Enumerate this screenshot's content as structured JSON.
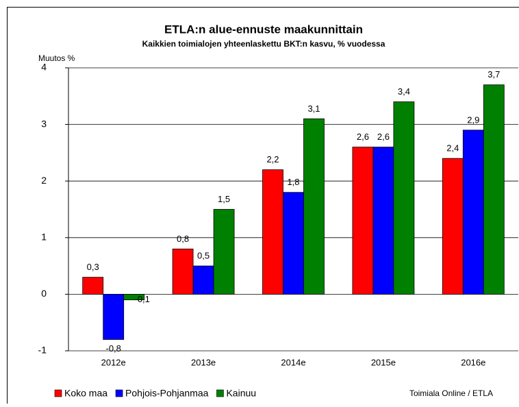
{
  "chart_data": {
    "type": "bar",
    "title": "ETLA:n alue-ennuste maakunnittain",
    "subtitle": "Kaikkien toimialojen yhteenlaskettu BKT:n kasvu, % vuodessa",
    "y_label": "Muutos %",
    "source": "Toimiala Online / ETLA",
    "categories": [
      "2012e",
      "2013e",
      "2014e",
      "2015e",
      "2016e"
    ],
    "series": [
      {
        "name": "Koko maa",
        "color": "#ff0000",
        "values": [
          0.3,
          0.8,
          2.2,
          2.6,
          2.4
        ],
        "value_labels": [
          "0,3",
          "0,8",
          "2,2",
          "2,6",
          "2,4"
        ]
      },
      {
        "name": "Pohjois-Pohjanmaa",
        "color": "#0000ff",
        "values": [
          -0.8,
          0.5,
          1.8,
          2.6,
          2.9
        ],
        "value_labels": [
          "-0,8",
          "0,5",
          "1,8",
          "2,6",
          "2,9"
        ]
      },
      {
        "name": "Kainuu",
        "color": "#008000",
        "values": [
          -0.1,
          1.5,
          3.1,
          3.4,
          3.7
        ],
        "value_labels": [
          "-0,1",
          "1,5",
          "3,1",
          "3,4",
          "3,7"
        ]
      }
    ],
    "ylim": [
      -1,
      4
    ],
    "yticks": [
      -1,
      0,
      1,
      2,
      3,
      4
    ],
    "grid": true,
    "legend": "bottom"
  }
}
